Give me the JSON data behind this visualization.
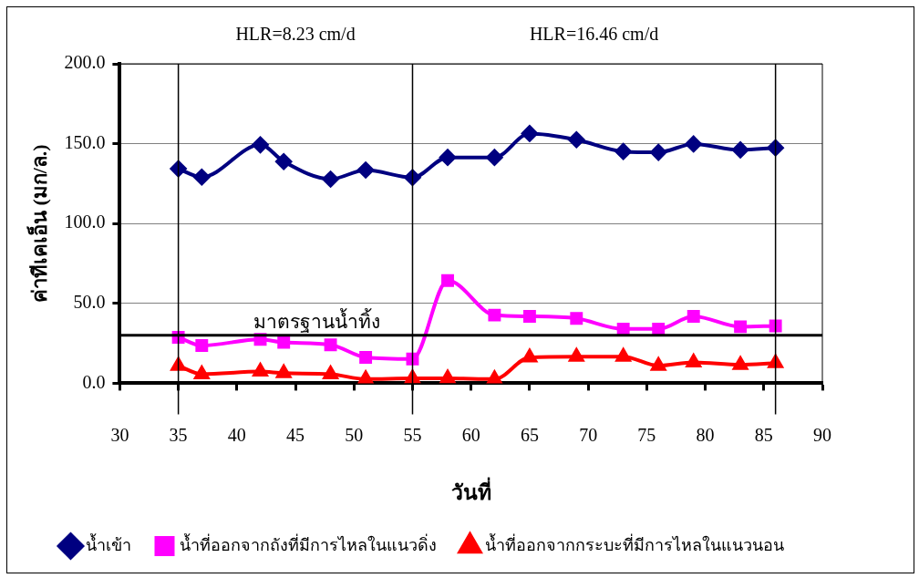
{
  "chart_data": {
    "type": "line",
    "xlabel": "วันที่",
    "ylabel": "ค่าทีเคเอ็น (มก/ล.)",
    "x": [
      35,
      37,
      42,
      44,
      48,
      51,
      55,
      58,
      62,
      65,
      69,
      73,
      76,
      79,
      83,
      86
    ],
    "series": [
      {
        "name": "น้ำเข้า",
        "color": "#000080",
        "marker": "diamond",
        "values": [
          134.3,
          129.1,
          149.3,
          138.8,
          127.8,
          133.5,
          128.8,
          141.4,
          141.4,
          156.4,
          152.5,
          145.1,
          144.6,
          149.8,
          146.1,
          147.4
        ]
      },
      {
        "name": "น้ำที่ออกจากถังที่มีการไหลในแนวดิ่ง",
        "color": "#ff00ff",
        "marker": "square",
        "values": [
          28.8,
          23.6,
          27.5,
          25.6,
          24.1,
          16.2,
          15.2,
          64.3,
          42.7,
          41.9,
          40.6,
          34.0,
          34.0,
          41.9,
          35.4,
          35.9
        ]
      },
      {
        "name": "น้ำที่ออกจากกระบะที่มีการไหลในแนวนอน",
        "color": "#ff0000",
        "marker": "triangle",
        "values": [
          11.0,
          5.7,
          7.3,
          6.3,
          5.7,
          2.6,
          3.1,
          3.1,
          2.6,
          16.2,
          16.7,
          16.7,
          11.0,
          13.1,
          11.5,
          12.6
        ]
      }
    ],
    "xlim": [
      30,
      90
    ],
    "xticks": [
      30,
      35,
      40,
      45,
      50,
      55,
      60,
      65,
      70,
      75,
      80,
      85,
      90
    ],
    "ylim": [
      0,
      200
    ],
    "yticks": [
      {
        "value": 0,
        "label": "0.0"
      },
      {
        "value": 50,
        "label": "50.0"
      },
      {
        "value": 100,
        "label": "100.0"
      },
      {
        "value": 150,
        "label": "150.0"
      },
      {
        "value": 200,
        "label": "200.0"
      }
    ],
    "ref_lines": [
      {
        "axis": "y",
        "value": 30,
        "label": "มาตรฐานน้ำทิ้ง",
        "color": "#000000"
      },
      {
        "axis": "x",
        "value": 35,
        "color": "#000000"
      },
      {
        "axis": "x",
        "value": 55,
        "color": "#000000"
      },
      {
        "axis": "x",
        "value": 86,
        "color": "#000000"
      }
    ],
    "annotations": [
      "HLR=8.23 cm/d",
      "HLR=16.46 cm/d"
    ],
    "grid": "y",
    "legend": "bottom"
  }
}
